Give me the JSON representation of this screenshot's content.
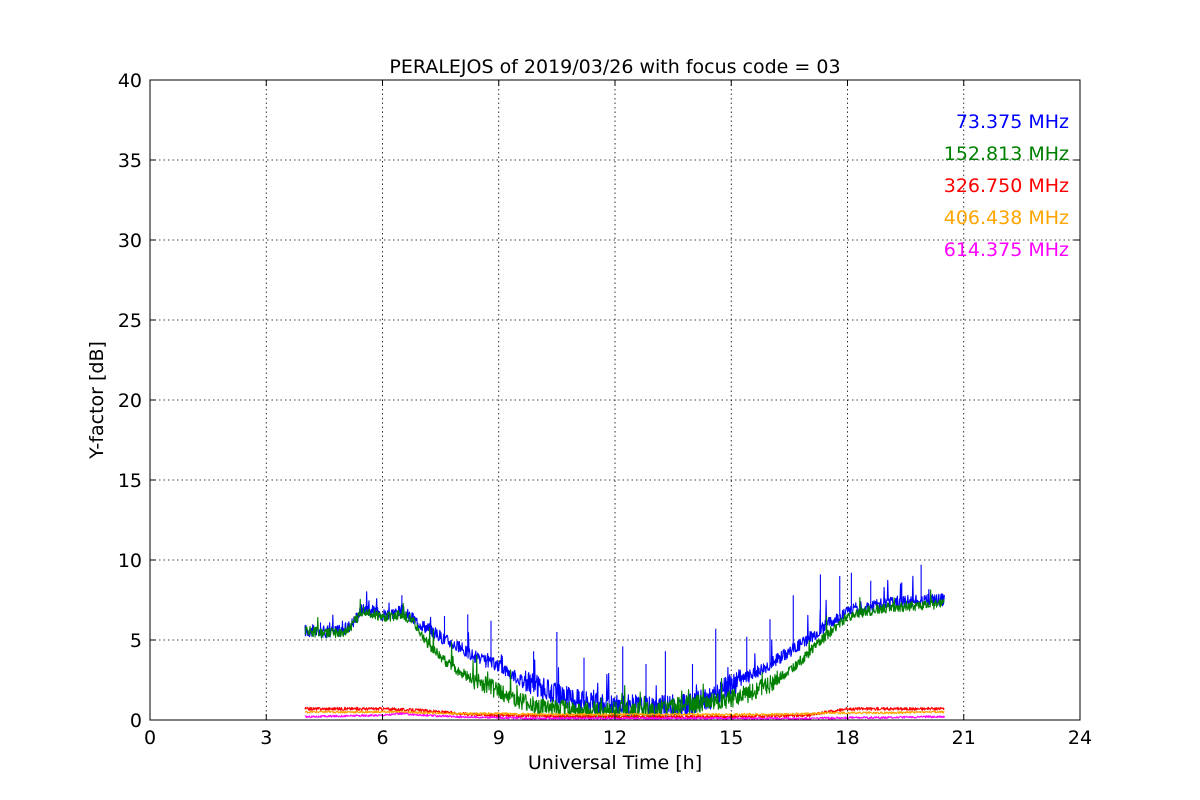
{
  "chart_data": {
    "type": "line",
    "title": "PERALEJOS of 2019/03/26 with focus code = 03",
    "xlabel": "Universal Time [h]",
    "ylabel": "Y-factor [dB]",
    "xlim": [
      0,
      24
    ],
    "ylim": [
      0,
      40
    ],
    "xticks": [
      0,
      3,
      6,
      9,
      12,
      15,
      18,
      21,
      24
    ],
    "yticks": [
      0,
      5,
      10,
      15,
      20,
      25,
      30,
      35,
      40
    ],
    "grid": true,
    "legend_position": "top-right",
    "series": [
      {
        "name": "73.375 MHz",
        "color": "#0000ff",
        "x": [
          4.0,
          4.5,
          5.0,
          5.2,
          5.5,
          6.0,
          6.5,
          6.8,
          7.0,
          7.5,
          8.0,
          8.5,
          9.0,
          9.5,
          10.0,
          10.5,
          11.0,
          11.5,
          12.0,
          12.5,
          13.0,
          13.5,
          14.0,
          14.5,
          15.0,
          15.5,
          16.0,
          16.5,
          17.0,
          17.5,
          18.0,
          18.5,
          19.0,
          19.5,
          20.0,
          20.5
        ],
        "y": [
          5.6,
          5.5,
          5.6,
          6.0,
          7.0,
          6.6,
          6.8,
          6.3,
          6.0,
          5.2,
          4.5,
          3.8,
          3.4,
          2.6,
          2.1,
          1.6,
          1.3,
          1.0,
          0.9,
          0.9,
          0.8,
          0.9,
          1.0,
          1.4,
          2.2,
          2.8,
          3.5,
          4.3,
          5.1,
          6.0,
          6.8,
          7.1,
          7.3,
          7.4,
          7.5,
          7.5
        ],
        "spikes": [
          [
            4.4,
            6.1
          ],
          [
            6.5,
            7.8
          ],
          [
            7.6,
            6.5
          ],
          [
            8.2,
            6.6
          ],
          [
            8.8,
            6.2
          ],
          [
            9.9,
            4.3
          ],
          [
            10.5,
            5.5
          ],
          [
            11.2,
            3.9
          ],
          [
            12.2,
            4.6
          ],
          [
            12.8,
            3.5
          ],
          [
            13.3,
            4.3
          ],
          [
            14.0,
            3.5
          ],
          [
            14.6,
            5.7
          ],
          [
            15.4,
            5.2
          ],
          [
            16.0,
            6.3
          ],
          [
            16.6,
            7.8
          ],
          [
            17.3,
            9.1
          ],
          [
            17.8,
            9.0
          ],
          [
            18.1,
            9.2
          ],
          [
            18.6,
            8.7
          ],
          [
            19.4,
            8.6
          ],
          [
            19.9,
            9.7
          ]
        ]
      },
      {
        "name": "152.813 MHz",
        "color": "#008000",
        "x": [
          4.0,
          4.5,
          5.0,
          5.2,
          5.5,
          6.0,
          6.5,
          6.8,
          7.0,
          7.5,
          8.0,
          8.5,
          9.0,
          9.5,
          10.0,
          10.5,
          11.0,
          11.5,
          12.0,
          12.5,
          13.0,
          13.5,
          14.0,
          14.5,
          15.0,
          15.5,
          16.0,
          16.5,
          17.0,
          17.5,
          18.0,
          18.5,
          19.0,
          19.5,
          20.0,
          20.5
        ],
        "y": [
          5.6,
          5.4,
          5.5,
          5.9,
          6.9,
          6.4,
          6.6,
          6.2,
          5.3,
          3.9,
          3.0,
          2.3,
          1.8,
          1.2,
          0.8,
          0.7,
          0.6,
          0.6,
          0.6,
          0.6,
          0.6,
          0.8,
          1.0,
          1.1,
          1.3,
          1.7,
          2.2,
          3.0,
          4.2,
          5.4,
          6.4,
          6.8,
          7.0,
          7.1,
          7.2,
          7.2
        ],
        "spikes": []
      },
      {
        "name": "326.750 MHz",
        "color": "#ff0000",
        "x": [
          4.0,
          5.0,
          6.0,
          7.0,
          8.0,
          9.0,
          10.0,
          11.0,
          12.0,
          13.0,
          14.0,
          15.0,
          16.0,
          17.0,
          17.5,
          18.0,
          19.0,
          20.0,
          20.5
        ],
        "y": [
          0.7,
          0.7,
          0.7,
          0.6,
          0.4,
          0.3,
          0.25,
          0.2,
          0.2,
          0.2,
          0.2,
          0.2,
          0.25,
          0.3,
          0.5,
          0.7,
          0.7,
          0.7,
          0.7
        ],
        "spikes": []
      },
      {
        "name": "406.438 MHz",
        "color": "#ffa500",
        "x": [
          4.0,
          5.0,
          6.0,
          6.5,
          7.0,
          8.0,
          9.0,
          10.0,
          11.0,
          12.0,
          13.0,
          14.0,
          15.0,
          16.0,
          17.0,
          18.0,
          19.0,
          20.0,
          20.5
        ],
        "y": [
          0.5,
          0.5,
          0.5,
          0.5,
          0.45,
          0.4,
          0.4,
          0.35,
          0.35,
          0.35,
          0.35,
          0.35,
          0.35,
          0.35,
          0.4,
          0.45,
          0.45,
          0.5,
          0.5
        ],
        "spikes": []
      },
      {
        "name": "614.375 MHz",
        "color": "#ff00ff",
        "x": [
          4.0,
          5.0,
          6.0,
          6.5,
          7.0,
          8.0,
          9.0,
          10.0,
          11.0,
          12.0,
          13.0,
          14.0,
          15.0,
          16.0,
          17.0,
          18.0,
          19.0,
          20.0,
          20.5
        ],
        "y": [
          0.2,
          0.25,
          0.3,
          0.4,
          0.3,
          0.2,
          0.15,
          0.1,
          0.1,
          0.1,
          0.1,
          0.1,
          0.1,
          0.1,
          0.1,
          0.15,
          0.15,
          0.2,
          0.2
        ],
        "spikes": []
      }
    ]
  }
}
